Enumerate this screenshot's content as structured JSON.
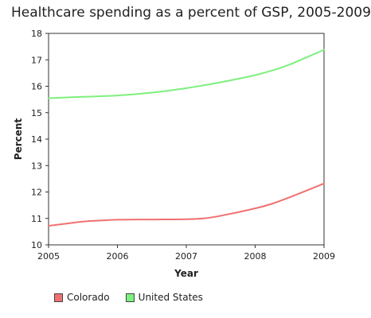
{
  "chart_data": {
    "type": "line",
    "title": "Healthcare spending as a percent of GSP, 2005-2009",
    "xlabel": "Year",
    "ylabel": "Percent",
    "xlim": [
      2005,
      2009
    ],
    "ylim": [
      10,
      18
    ],
    "x_ticks": [
      "2005",
      "2006",
      "2007",
      "2008",
      "2009"
    ],
    "y_ticks": [
      "10",
      "11",
      "12",
      "13",
      "14",
      "15",
      "16",
      "17",
      "18"
    ],
    "grid": false,
    "legend_position": "bottom-left",
    "series": [
      {
        "name": "Colorado",
        "color": "#f07070",
        "points": [
          [
            2005.0,
            10.72
          ],
          [
            2005.25,
            10.8
          ],
          [
            2005.5,
            10.88
          ],
          [
            2005.75,
            10.92
          ],
          [
            2006.0,
            10.95
          ],
          [
            2006.5,
            10.96
          ],
          [
            2007.0,
            10.97
          ],
          [
            2007.25,
            11.0
          ],
          [
            2007.5,
            11.1
          ],
          [
            2008.0,
            11.38
          ],
          [
            2008.25,
            11.56
          ],
          [
            2008.5,
            11.8
          ],
          [
            2009.0,
            12.32
          ]
        ]
      },
      {
        "name": "United States",
        "color": "#7df07d",
        "points": [
          [
            2005.0,
            15.55
          ],
          [
            2005.5,
            15.6
          ],
          [
            2006.0,
            15.65
          ],
          [
            2006.5,
            15.76
          ],
          [
            2007.0,
            15.93
          ],
          [
            2007.5,
            16.15
          ],
          [
            2008.0,
            16.42
          ],
          [
            2008.25,
            16.6
          ],
          [
            2008.5,
            16.82
          ],
          [
            2009.0,
            17.38
          ]
        ]
      }
    ]
  }
}
